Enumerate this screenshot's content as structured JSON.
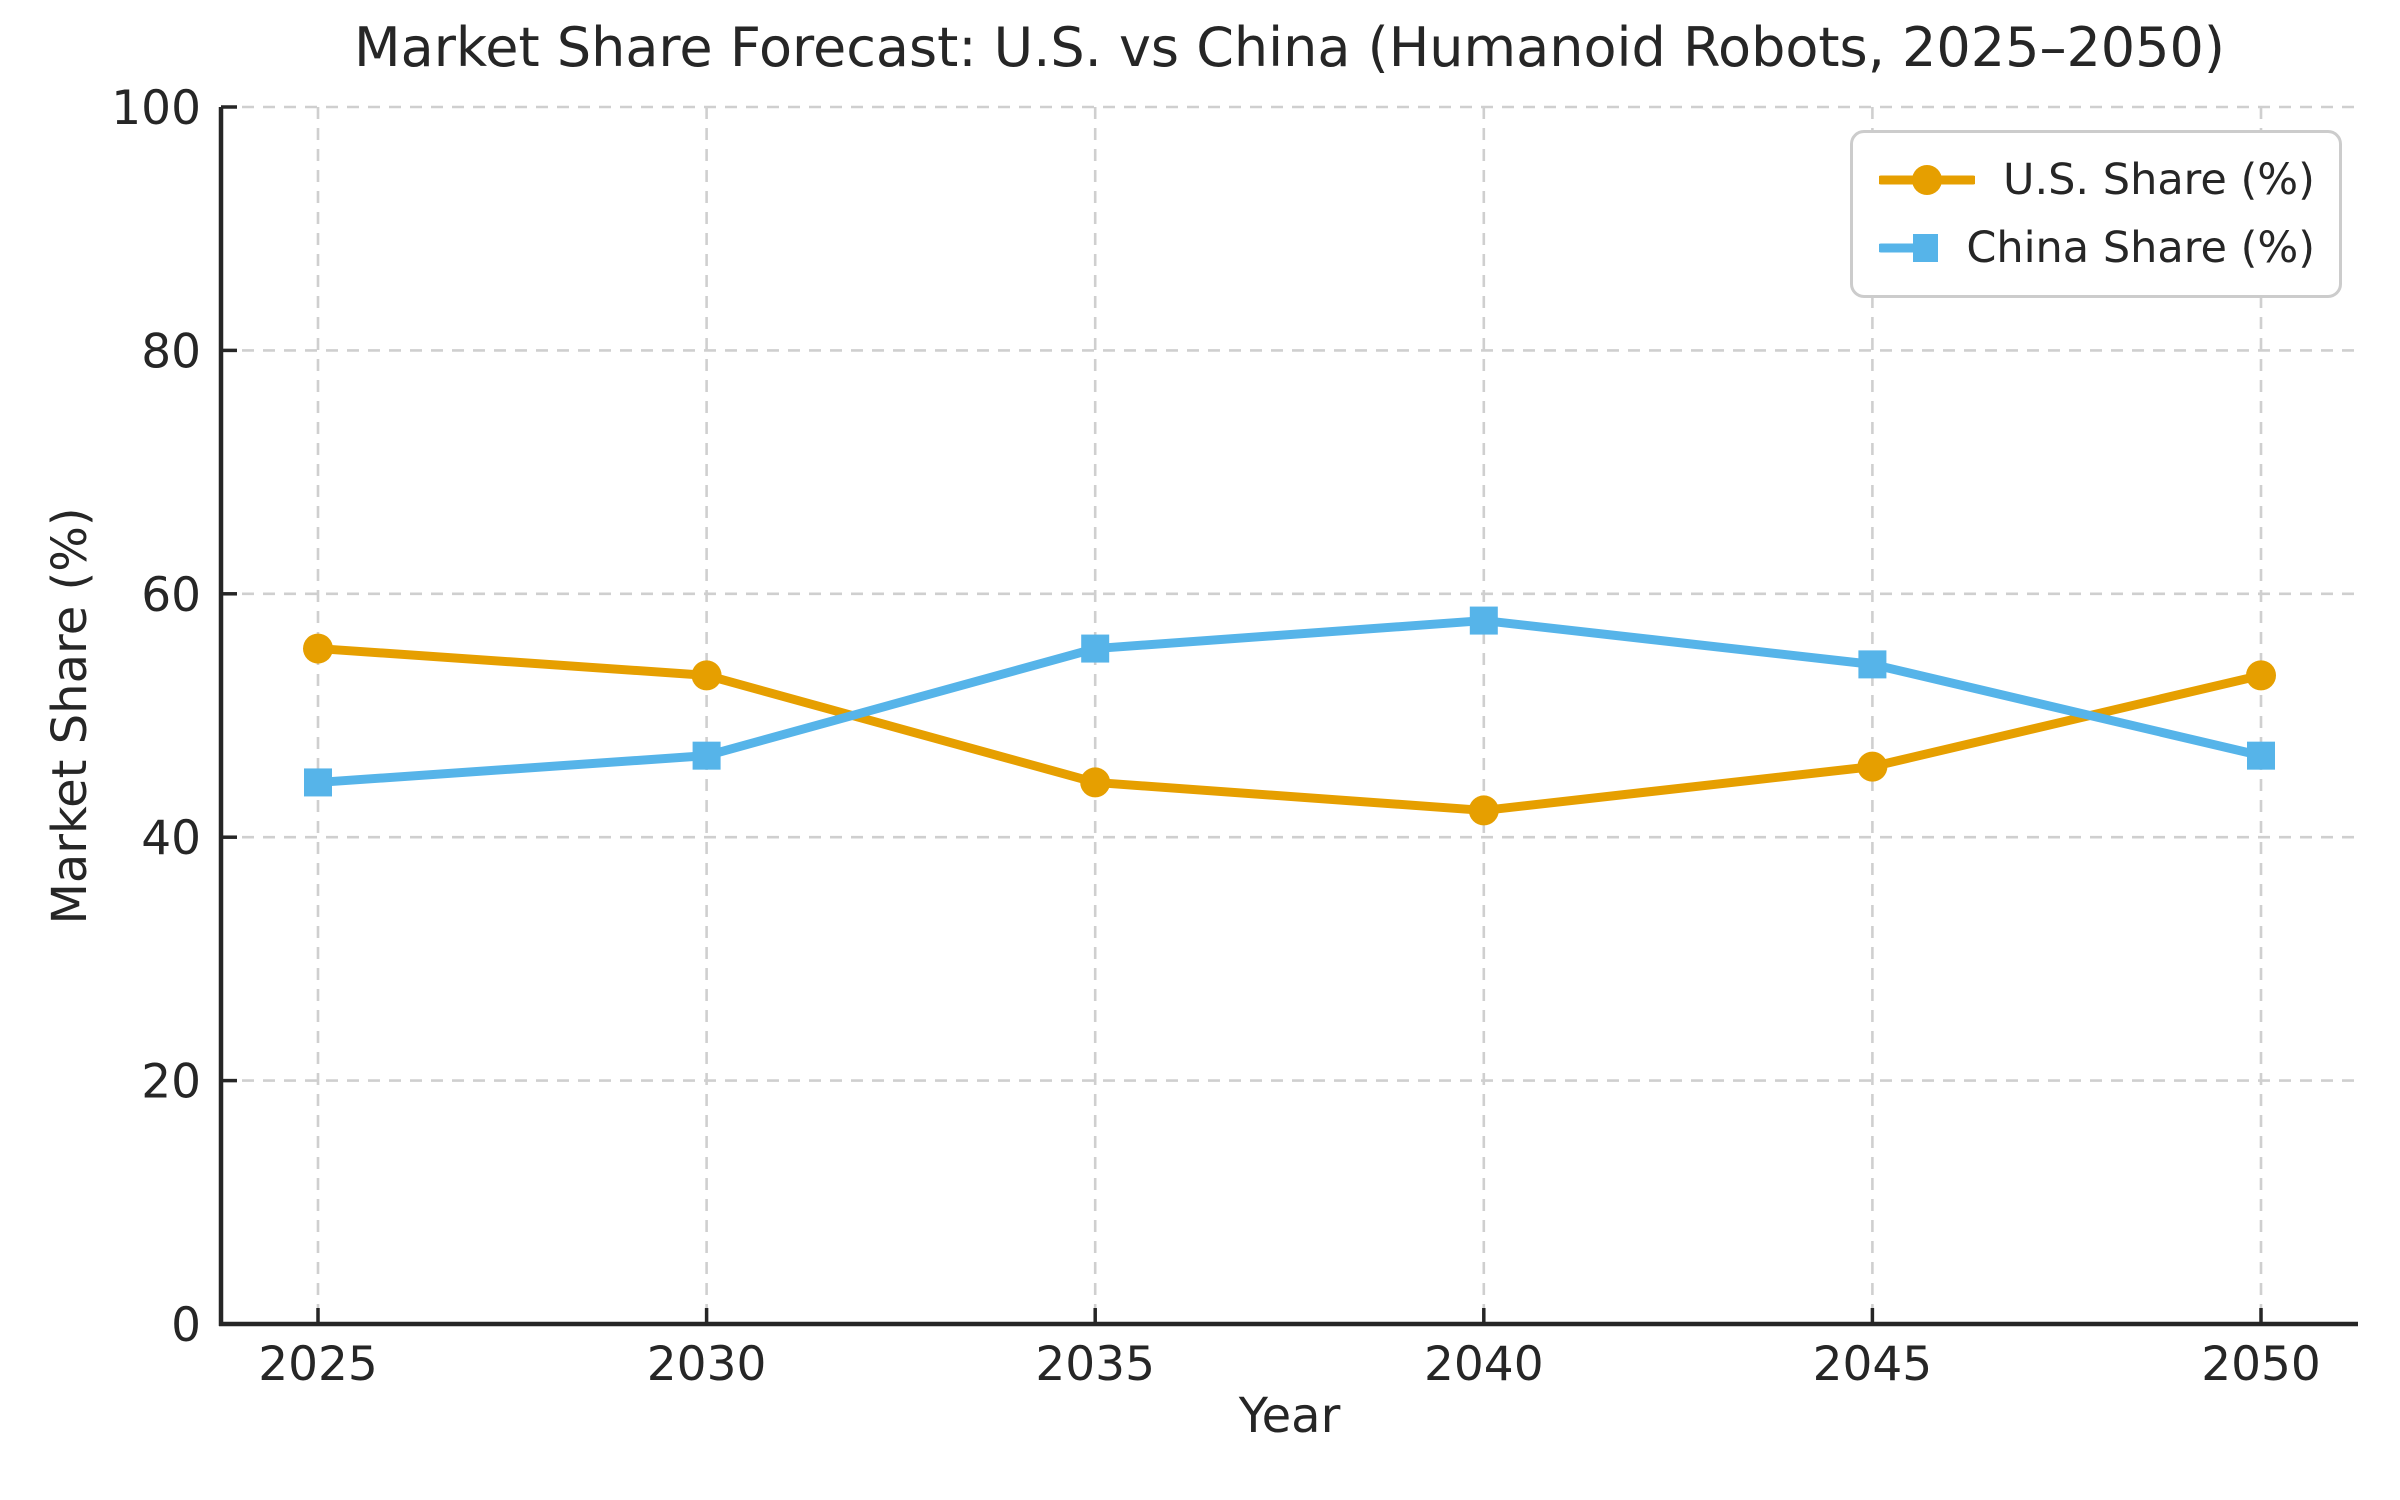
{
  "figure": {
    "background": "#ffffff"
  },
  "chart_data": {
    "type": "line",
    "title": "Market Share Forecast: U.S. vs China (Humanoid Robots, 2025–2050)",
    "xlabel": "Year",
    "ylabel": "Market Share (%)",
    "x": [
      2025,
      2030,
      2035,
      2040,
      2045,
      2050
    ],
    "series": [
      {
        "name": "U.S. Share (%)",
        "color": "#E69F00",
        "marker": "circle",
        "values": [
          55.5,
          53.3,
          44.5,
          42.2,
          45.8,
          53.3
        ]
      },
      {
        "name": "China Share (%)",
        "color": "#56B4E9",
        "marker": "square",
        "values": [
          44.5,
          46.7,
          55.5,
          57.8,
          54.2,
          46.7
        ]
      }
    ],
    "xticks": [
      2025,
      2030,
      2035,
      2040,
      2045,
      2050
    ],
    "yticks": [
      0,
      20,
      40,
      60,
      80,
      100
    ],
    "ylim": [
      0,
      100
    ],
    "xlim_years": [
      2023.75,
      2051.25
    ],
    "grid": true,
    "grid_style": "dashed",
    "legend_position": "upper right",
    "colors": {
      "text": "#262626",
      "spine": "#262626",
      "grid": "#cfcfcf",
      "background": "#ffffff"
    }
  },
  "legend": {
    "items": [
      {
        "label": "U.S. Share (%)",
        "color": "#E69F00",
        "marker": "circle"
      },
      {
        "label": "China Share (%)",
        "color": "#56B4E9",
        "marker": "square"
      }
    ]
  }
}
